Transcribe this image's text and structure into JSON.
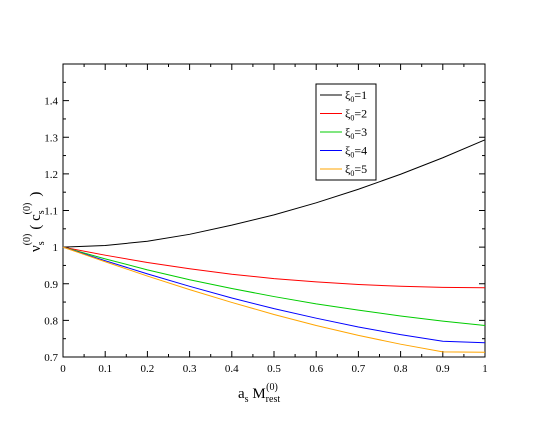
{
  "chart_data": {
    "type": "line",
    "x": [
      0,
      0.1,
      0.2,
      0.3,
      0.4,
      0.5,
      0.6,
      0.7,
      0.8,
      0.9,
      1.0
    ],
    "series": [
      {
        "name": "ξ0=1",
        "color": "#000000",
        "values": [
          1.0,
          1.0045,
          1.016,
          1.035,
          1.06,
          1.088,
          1.121,
          1.158,
          1.199,
          1.244,
          1.293
        ]
      },
      {
        "name": "ξ0=2",
        "color": "#ff0000",
        "values": [
          1.0,
          0.978,
          0.958,
          0.941,
          0.926,
          0.914,
          0.905,
          0.898,
          0.893,
          0.89,
          0.889
        ]
      },
      {
        "name": "ξ0=3",
        "color": "#00cc00",
        "values": [
          1.0,
          0.968,
          0.938,
          0.911,
          0.887,
          0.865,
          0.845,
          0.828,
          0.812,
          0.798,
          0.786
        ]
      },
      {
        "name": "ξ0=4",
        "color": "#0000ff",
        "values": [
          1.0,
          0.963,
          0.927,
          0.893,
          0.861,
          0.832,
          0.806,
          0.782,
          0.761,
          0.743,
          0.739
        ]
      },
      {
        "name": "ξ0=5",
        "color": "#ffa500",
        "values": [
          1.0,
          0.96,
          0.921,
          0.884,
          0.849,
          0.816,
          0.786,
          0.759,
          0.735,
          0.714,
          0.713
        ]
      }
    ],
    "xlim": [
      0,
      1
    ],
    "ylim": [
      0.7,
      1.5
    ],
    "xticks": [
      "0",
      "0.1",
      "0.2",
      "0.3",
      "0.4",
      "0.5",
      "0.6",
      "0.7",
      "0.8",
      "0.9",
      "1"
    ],
    "yticks": [
      "0.7",
      "0.8",
      "0.9",
      "1",
      "1.1",
      "1.2",
      "1.3",
      "1.4"
    ],
    "xlabel": {
      "base": "a",
      "sub1": "s",
      "mid": " M",
      "sub2": "rest",
      "sup": "(0)"
    },
    "ylabel": {
      "base": "ν",
      "sub1": "s",
      "sup1": "(0)",
      "open": "( c",
      "sub2": "s",
      "sup2": "(0)",
      "close": ")"
    },
    "legend_placement": "top-right",
    "grid": false
  }
}
